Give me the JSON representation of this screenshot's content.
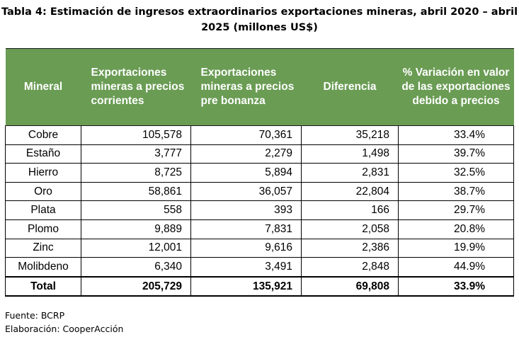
{
  "title_line1": "Tabla 4: Estimación de ingresos extraordinarios exportaciones mineras, abril 2020 – abril",
  "title_line2": "2025 (millones US$)",
  "headers": [
    "Mineral",
    "Exportaciones mineras a precios corrientes",
    "Exportaciones mineras a precios pre bonanza",
    "Diferencia",
    "% Variación en valor de las exportaciones debido a precios"
  ],
  "rows": [
    {
      "mineral": "Cobre",
      "corrientes": "105,578",
      "pre_bonanza": "70,361",
      "diferencia": "35,218",
      "variacion": "33.4%"
    },
    {
      "mineral": "Estaño",
      "corrientes": "3,777",
      "pre_bonanza": "2,279",
      "diferencia": "1,498",
      "variacion": "39.7%"
    },
    {
      "mineral": "Hierro",
      "corrientes": "8,725",
      "pre_bonanza": "5,894",
      "diferencia": "2,831",
      "variacion": "32.5%"
    },
    {
      "mineral": "Oro",
      "corrientes": "58,861",
      "pre_bonanza": "36,057",
      "diferencia": "22,804",
      "variacion": "38.7%"
    },
    {
      "mineral": "Plata",
      "corrientes": "558",
      "pre_bonanza": "393",
      "diferencia": "166",
      "variacion": "29.7%"
    },
    {
      "mineral": "Plomo",
      "corrientes": "9,889",
      "pre_bonanza": "7,831",
      "diferencia": "2,058",
      "variacion": "20.8%"
    },
    {
      "mineral": "Zinc",
      "corrientes": "12,001",
      "pre_bonanza": "9,616",
      "diferencia": "2,386",
      "variacion": "19.9%"
    },
    {
      "mineral": "Molibdeno",
      "corrientes": "6,340",
      "pre_bonanza": "3,491",
      "diferencia": "2,848",
      "variacion": "44.9%"
    }
  ],
  "total": {
    "mineral": "Total",
    "corrientes": "205,729",
    "pre_bonanza": "135,921",
    "diferencia": "69,808",
    "variacion": "33.9%"
  },
  "footer": {
    "fuente": "Fuente: BCRP",
    "elaboracion": "Elaboración: CooperAcción"
  },
  "colors": {
    "header_bg": "#6a9c54",
    "header_text": "#ffffff"
  }
}
